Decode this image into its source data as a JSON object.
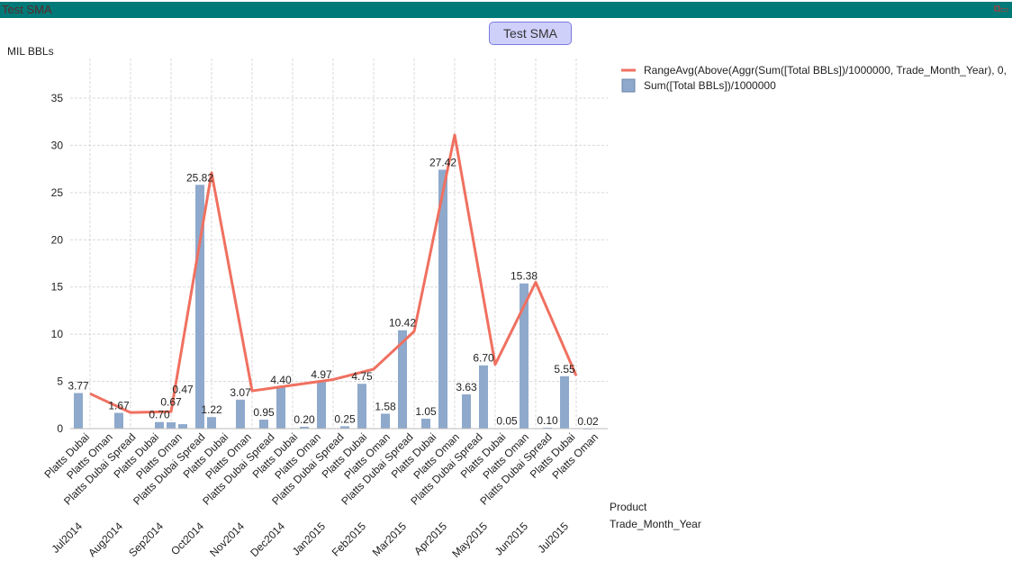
{
  "window": {
    "title": "Test SMA"
  },
  "chart_data": {
    "type": "bar+line",
    "title": "Test SMA",
    "ylabel": "MIL BBLs",
    "ylim": [
      0,
      35
    ],
    "yticks": [
      0,
      5,
      10,
      15,
      20,
      25,
      30,
      35
    ],
    "grid": true,
    "legend_position": "top-right",
    "months": [
      "Jul2014",
      "Aug2014",
      "Sep2014",
      "Oct2014",
      "Nov2014",
      "Dec2014",
      "Jan2015",
      "Feb2015",
      "Mar2015",
      "Apr2015",
      "May2015",
      "Jun2015",
      "Jul2015"
    ],
    "product_labels": [
      "Platts Dubai",
      "Platts Oman",
      "Platts Dubai Spread",
      "Platts Dubai",
      "Platts Oman",
      "Platts Dubai Spread",
      "Platts Dubai",
      "Platts Oman",
      "Platts Dubai Spread",
      "Platts Dubai",
      "Platts Oman",
      "Platts Dubai Spread",
      "Platts Dubai",
      "Platts Oman",
      "Platts Dubai Spread",
      "Platts Dubai",
      "Platts Oman",
      "Platts Dubai Spread",
      "Platts Dubai",
      "Platts Oman",
      "Platts Dubai Spread",
      "Platts Dubai",
      "Platts Oman"
    ],
    "dimension_labels": [
      "Product",
      "Trade_Month_Year"
    ],
    "bars": {
      "name": "Sum([Total BBLs])/1000000",
      "color": "#8ea9cc",
      "points": [
        {
          "month": 0,
          "slot": 0,
          "value": 3.77,
          "label": "3.77"
        },
        {
          "month": 1,
          "slot": 0,
          "value": 1.67,
          "label": "1.67"
        },
        {
          "month": 2,
          "slot": 0,
          "value": 0.7,
          "label": "0.70"
        },
        {
          "month": 2,
          "slot": 1,
          "value": 0.67,
          "label": "0.67"
        },
        {
          "month": 2,
          "slot": 2,
          "value": 0.47,
          "label": "0.47"
        },
        {
          "month": 3,
          "slot": 0,
          "value": 25.82,
          "label": "25.82"
        },
        {
          "month": 3,
          "slot": 1,
          "value": 1.22,
          "label": "1.22"
        },
        {
          "month": 4,
          "slot": 0,
          "value": 3.07,
          "label": "3.07"
        },
        {
          "month": 4,
          "slot": 2,
          "value": 0.95,
          "label": "0.95"
        },
        {
          "month": 5,
          "slot": 0,
          "value": 4.4,
          "label": "4.40"
        },
        {
          "month": 5,
          "slot": 2,
          "value": 0.2,
          "label": "0.20"
        },
        {
          "month": 6,
          "slot": 0,
          "value": 4.97,
          "label": "4.97"
        },
        {
          "month": 6,
          "slot": 2,
          "value": 0.25,
          "label": "0.25"
        },
        {
          "month": 7,
          "slot": 0,
          "value": 4.75,
          "label": "4.75"
        },
        {
          "month": 7,
          "slot": 2,
          "value": 1.58,
          "label": "1.58"
        },
        {
          "month": 8,
          "slot": 0,
          "value": 10.42,
          "label": "10.42"
        },
        {
          "month": 8,
          "slot": 2,
          "value": 1.05,
          "label": "1.05"
        },
        {
          "month": 9,
          "slot": 0,
          "value": 27.42,
          "label": "27.42"
        },
        {
          "month": 9,
          "slot": 2,
          "value": 3.63,
          "label": "3.63"
        },
        {
          "month": 10,
          "slot": 0,
          "value": 6.7,
          "label": "6.70"
        },
        {
          "month": 10,
          "slot": 2,
          "value": 0.05,
          "label": "0.05"
        },
        {
          "month": 11,
          "slot": 0,
          "value": 15.38,
          "label": "15.38"
        },
        {
          "month": 11,
          "slot": 2,
          "value": 0.1,
          "label": "0.10"
        },
        {
          "month": 12,
          "slot": 0,
          "value": 5.55,
          "label": "5.55"
        },
        {
          "month": 12,
          "slot": 2,
          "value": 0.02,
          "label": "0.02"
        }
      ]
    },
    "line": {
      "name": "RangeAvg(Above(Aggr(Sum([Total BBLs])/1000000, Trade_Month_Year), 0,",
      "color": "#f07060",
      "values": [
        3.7,
        1.7,
        1.8,
        27.1,
        4.0,
        4.6,
        5.2,
        6.3,
        10.3,
        31.1,
        6.8,
        15.5,
        5.6
      ]
    }
  }
}
